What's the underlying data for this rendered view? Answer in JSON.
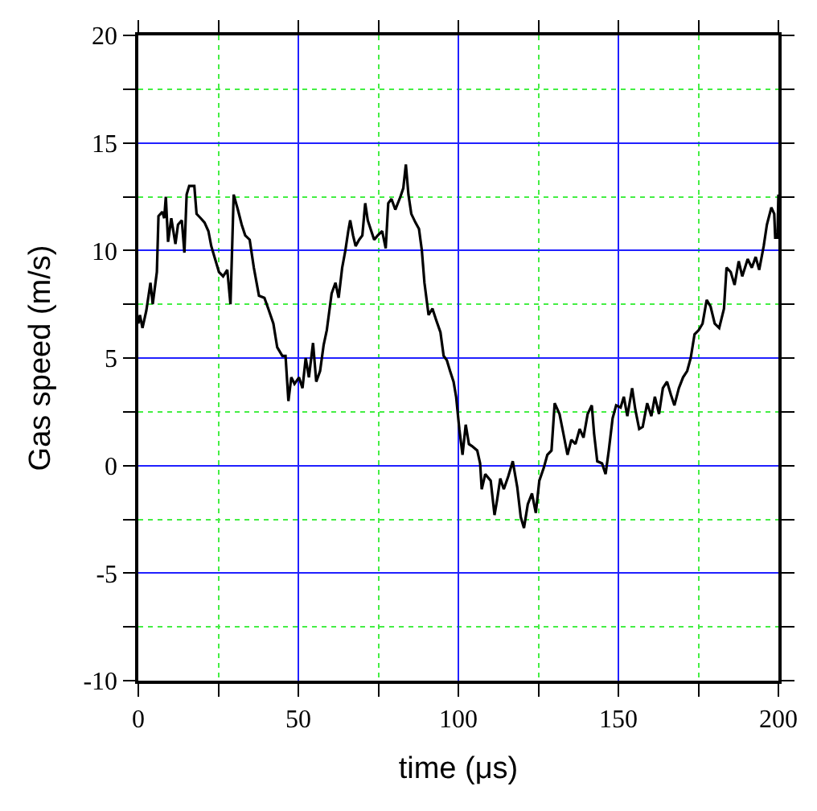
{
  "chart_data": {
    "type": "line",
    "xlabel": "time (μs)",
    "ylabel": "Gas speed (m/s)",
    "xlim": [
      0,
      200
    ],
    "ylim": [
      -10,
      20
    ],
    "xticks": [
      0,
      {
        "value": 25,
        "label": null
      },
      50,
      {
        "value": 75,
        "label": null
      },
      100,
      {
        "value": 125,
        "label": null
      },
      150,
      {
        "value": 175,
        "label": null
      },
      200
    ],
    "yticks": [
      -10,
      {
        "value": -7.5,
        "label": null
      },
      -5,
      {
        "value": -2.5,
        "label": null
      },
      0,
      {
        "value": 2.5,
        "label": null
      },
      5,
      {
        "value": 7.5,
        "label": null
      },
      10,
      {
        "value": 12.5,
        "label": null
      },
      15,
      {
        "value": 17.5,
        "label": null
      },
      20
    ],
    "grid": true,
    "marker": "none",
    "line_style": "solid",
    "series": [
      {
        "color": "#000000",
        "x": [
          0,
          0.5,
          1.3,
          2.5,
          3.8,
          4.5,
          5.8,
          6.3,
          7.5,
          8.1,
          8.6,
          9.3,
          10.3,
          11.6,
          12.4,
          13.6,
          14.4,
          15.1,
          15.9,
          17.5,
          18.2,
          19.5,
          20.7,
          21.9,
          22.8,
          24.2,
          25.2,
          26.5,
          27.8,
          28.8,
          29.8,
          31.1,
          32.3,
          33.4,
          34.8,
          36.1,
          37.7,
          39.4,
          40.6,
          42.2,
          43.4,
          45.0,
          46.0,
          46.9,
          47.8,
          48.8,
          50.2,
          51.3,
          52.3,
          53.3,
          54.6,
          55.6,
          56.8,
          57.9,
          58.9,
          60.4,
          61.6,
          62.6,
          63.7,
          64.7,
          65.6,
          66.2,
          67.1,
          67.9,
          69.0,
          70.0,
          70.9,
          71.7,
          72.8,
          73.7,
          74.8,
          76.2,
          77.3,
          78.1,
          79.1,
          80.3,
          81.9,
          82.8,
          83.6,
          84.4,
          85.3,
          86.6,
          87.7,
          88.6,
          89.4,
          90.7,
          91.9,
          93.0,
          94.4,
          95.4,
          96.4,
          97.4,
          98.5,
          99.3,
          100.3,
          101.3,
          102.3,
          103.3,
          104.3,
          105.9,
          106.8,
          107.3,
          108.4,
          110.1,
          111.3,
          112.1,
          113.1,
          114.2,
          115.6,
          117.0,
          118.4,
          119.5,
          120.5,
          121.7,
          123.0,
          124.2,
          125.3,
          126.7,
          127.8,
          129.1,
          130.1,
          131.6,
          132.8,
          134.1,
          135.3,
          136.6,
          137.9,
          139.1,
          140.4,
          141.7,
          142.4,
          143.4,
          144.9,
          146.0,
          147.0,
          148.2,
          149.3,
          150.7,
          151.7,
          152.8,
          154.3,
          155.3,
          156.5,
          157.6,
          159.0,
          160.3,
          161.4,
          162.7,
          163.9,
          165.2,
          166.4,
          167.5,
          168.9,
          170.2,
          171.5,
          172.6,
          173.8,
          175.1,
          176.3,
          177.6,
          178.8,
          180.1,
          181.5,
          183.0,
          183.8,
          185.1,
          186.3,
          187.6,
          188.7,
          190.4,
          191.7,
          192.9,
          194.0,
          195.4,
          196.4,
          197.8,
          198.7,
          199.0,
          199.7,
          200
        ],
        "values": [
          6.6,
          7.0,
          6.4,
          7.2,
          8.5,
          7.5,
          9.0,
          11.6,
          11.8,
          11.5,
          12.5,
          10.4,
          11.5,
          10.3,
          11.2,
          11.4,
          9.9,
          12.6,
          13.0,
          13.0,
          11.7,
          11.5,
          11.3,
          10.9,
          10.2,
          9.5,
          9.0,
          8.8,
          9.1,
          7.5,
          12.6,
          11.9,
          11.2,
          10.7,
          10.5,
          9.2,
          7.9,
          7.8,
          7.3,
          6.6,
          5.5,
          5.1,
          5.1,
          3.0,
          4.1,
          3.8,
          4.1,
          3.6,
          5.0,
          4.1,
          5.7,
          3.9,
          4.4,
          5.6,
          6.3,
          8.0,
          8.5,
          7.8,
          9.2,
          10.0,
          10.9,
          11.4,
          10.7,
          10.2,
          10.5,
          10.7,
          12.2,
          11.4,
          10.9,
          10.5,
          10.7,
          10.9,
          10.1,
          12.2,
          12.4,
          11.9,
          12.5,
          12.9,
          14.0,
          12.6,
          11.7,
          11.3,
          11.0,
          10.0,
          8.5,
          7.0,
          7.3,
          6.8,
          6.2,
          5.1,
          4.9,
          4.4,
          3.9,
          3.2,
          1.7,
          0.5,
          1.9,
          1.0,
          0.9,
          0.7,
          0.1,
          -1.1,
          -0.4,
          -0.7,
          -2.3,
          -1.6,
          -0.6,
          -1.1,
          -0.5,
          0.2,
          -1.0,
          -2.4,
          -2.9,
          -1.8,
          -1.3,
          -2.2,
          -0.7,
          -0.1,
          0.5,
          0.7,
          2.9,
          2.4,
          1.5,
          0.5,
          1.2,
          1.0,
          1.7,
          1.3,
          2.4,
          2.8,
          1.5,
          0.2,
          0.1,
          -0.4,
          0.7,
          2.2,
          2.8,
          2.7,
          3.2,
          2.3,
          3.6,
          2.6,
          1.7,
          1.8,
          2.9,
          2.3,
          3.2,
          2.4,
          3.6,
          3.9,
          3.3,
          2.8,
          3.6,
          4.1,
          4.4,
          5.0,
          6.1,
          6.3,
          6.6,
          7.7,
          7.4,
          6.6,
          6.4,
          7.3,
          9.2,
          9.0,
          8.4,
          9.5,
          8.8,
          9.6,
          9.2,
          9.7,
          9.1,
          10.2,
          11.2,
          12.0,
          11.7,
          10.6,
          10.6,
          12.6
        ]
      }
    ]
  }
}
